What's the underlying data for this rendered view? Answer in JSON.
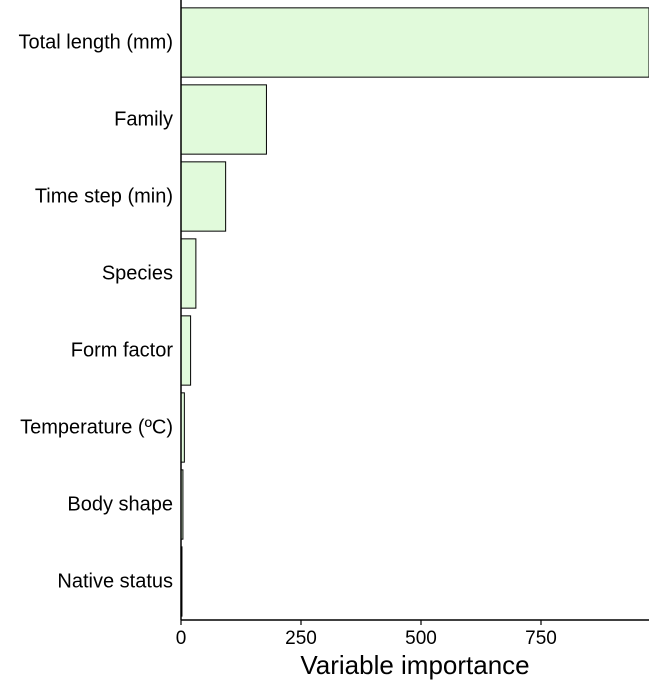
{
  "chart_data": {
    "type": "bar",
    "orientation": "horizontal",
    "title": "",
    "xlabel": "Variable importance",
    "ylabel": "",
    "categories": [
      "Total length (mm)",
      "Family",
      "Time step (min)",
      "Species",
      "Form factor",
      "Temperature (ºC)",
      "Body shape",
      "Native status"
    ],
    "values": [
      975,
      178,
      93,
      31,
      20,
      7,
      4,
      2
    ],
    "xlim": [
      0,
      975
    ],
    "xticks": [
      0,
      250,
      500,
      750
    ],
    "xtick_labels": [
      "0",
      "250",
      "500",
      "750"
    ],
    "grid": false,
    "legend": "none",
    "colors": {
      "bar_fill": "#e1fadb",
      "bar_stroke": "#000000",
      "axis": "#000000"
    }
  }
}
